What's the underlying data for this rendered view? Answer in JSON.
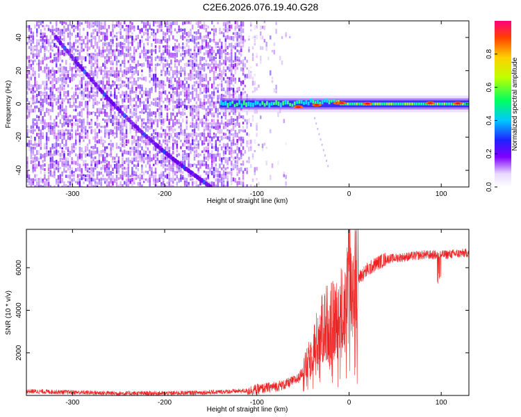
{
  "title": "C2E6.2026.076.19.40.G28",
  "colors": {
    "snr_line": "#ee2222",
    "track_primary": "#6a00f0",
    "noise_base": "#7a3cf0",
    "axis": "#000000"
  },
  "chart_data": [
    {
      "type": "heatmap",
      "name": "spectrogram",
      "xlabel": "Height of straight line (km)",
      "ylabel": "Frequency (Hz)",
      "xlim": [
        -350,
        130
      ],
      "ylim": [
        -50,
        50
      ],
      "x_ticks": [
        -300,
        -200,
        -100,
        0,
        100
      ],
      "x_tick_labels": [
        "-300",
        "-200",
        "-100",
        "0",
        "100"
      ],
      "y_ticks": [
        -40,
        -20,
        0,
        20,
        40
      ],
      "y_tick_labels": [
        "-40",
        "-20",
        "0",
        "20",
        "40"
      ],
      "noise_region_x": [
        -350,
        -62
      ],
      "main_signal_x": [
        -140,
        130
      ],
      "main_signal_freq_hz": 0,
      "diagonal_trace": {
        "x_start": -318,
        "f_start": 40,
        "x_end": -150,
        "f_end": -50
      },
      "colorbar": {
        "label": "Normalized spectral amplitude",
        "range": [
          0,
          1
        ],
        "ticks": [
          0.0,
          0.2,
          0.4,
          0.6,
          0.8
        ],
        "tick_labels": [
          "0.0",
          "0.2",
          "0.4",
          "0.6",
          "0.8"
        ]
      }
    },
    {
      "type": "line",
      "name": "snr",
      "xlabel": "Height of straight line (km)",
      "ylabel": "SNR (10 * v/v)",
      "xlim": [
        -350,
        130
      ],
      "ylim": [
        0,
        7800
      ],
      "x_ticks": [
        -300,
        -200,
        -100,
        0,
        100
      ],
      "x_tick_labels": [
        "-300",
        "-200",
        "-100",
        "0",
        "100"
      ],
      "y_ticks": [
        2000,
        4000,
        6000
      ],
      "y_tick_labels": [
        "2000",
        "4000",
        "6000"
      ],
      "series": [
        {
          "name": "SNR",
          "x": [
            -350,
            -300,
            -250,
            -200,
            -150,
            -110,
            -90,
            -70,
            -55,
            -45,
            -35,
            -25,
            -15,
            -5,
            0,
            10,
            20,
            30,
            40,
            60,
            80,
            100,
            115,
            130
          ],
          "y": [
            200,
            150,
            100,
            100,
            150,
            220,
            350,
            500,
            800,
            1500,
            2600,
            3400,
            3500,
            4200,
            4800,
            5500,
            5900,
            6200,
            6400,
            6500,
            6600,
            6600,
            6650,
            6700
          ]
        }
      ]
    }
  ]
}
